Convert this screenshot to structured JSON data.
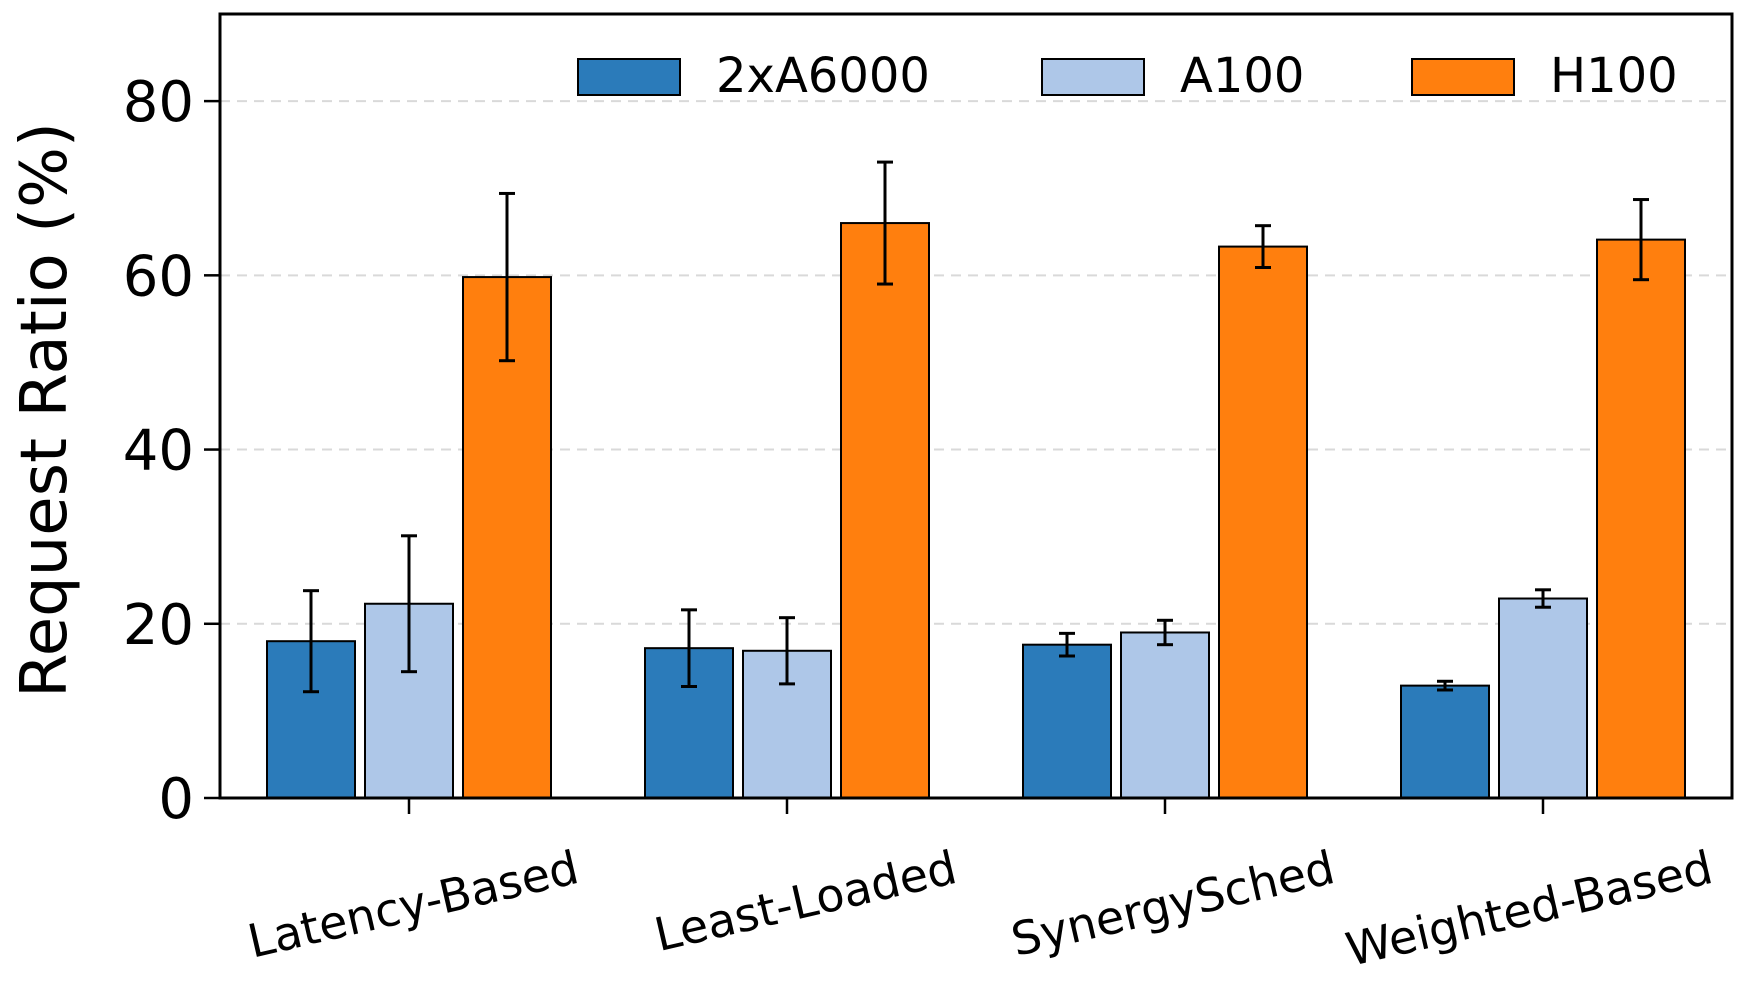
{
  "chart_data": {
    "type": "bar",
    "title": "",
    "xlabel": "",
    "ylabel": "Request Ratio (%)",
    "ylim": [
      0,
      90
    ],
    "yticks": [
      0,
      20,
      40,
      60,
      80
    ],
    "grid": "y, dashed",
    "legend_position": "top-right",
    "categories": [
      "Latency-Based",
      "Least-Loaded",
      "SynergySched",
      "Weighted-Based"
    ],
    "series": [
      {
        "name": "2xA6000",
        "color": "#2b7bba",
        "values": [
          18.0,
          17.2,
          17.6,
          12.9
        ],
        "errors": [
          5.8,
          4.4,
          1.3,
          0.5
        ]
      },
      {
        "name": "A100",
        "color": "#aec7e8",
        "values": [
          22.3,
          16.9,
          19.0,
          22.9
        ],
        "errors": [
          7.8,
          3.8,
          1.4,
          1.0
        ]
      },
      {
        "name": "H100",
        "color": "#ff7f0e",
        "values": [
          59.8,
          66.0,
          63.3,
          64.1
        ],
        "errors": [
          9.6,
          7.0,
          2.4,
          4.6
        ]
      }
    ]
  }
}
